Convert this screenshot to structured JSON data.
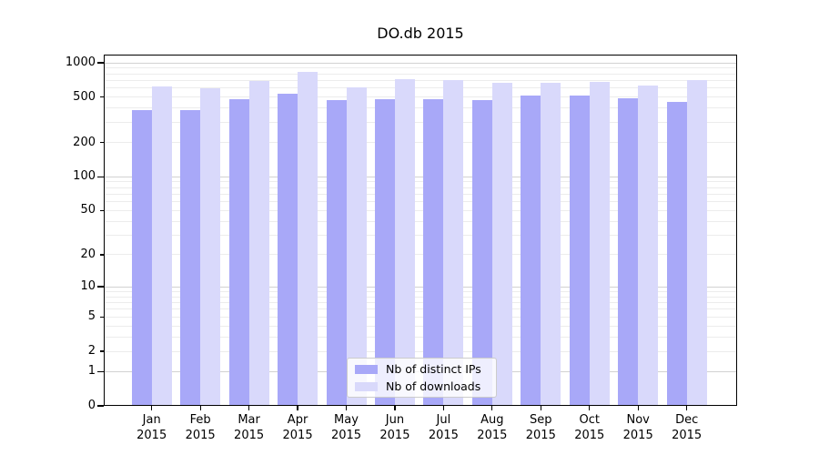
{
  "figure": {
    "title": "DO.db 2015"
  },
  "chart_data": {
    "type": "bar",
    "title": "DO.db 2015",
    "categories": [
      "Jan 2015",
      "Feb 2015",
      "Mar 2015",
      "Apr 2015",
      "May 2015",
      "Jun 2015",
      "Jul 2015",
      "Aug 2015",
      "Sep 2015",
      "Oct 2015",
      "Nov 2015",
      "Dec 2015"
    ],
    "series": [
      {
        "name": "Nb of distinct IPs",
        "color": "#a8a8f8",
        "values": [
          385,
          388,
          483,
          533,
          469,
          480,
          480,
          475,
          514,
          520,
          492,
          455
        ]
      },
      {
        "name": "Nb of downloads",
        "color": "#d9d9fb",
        "values": [
          620,
          598,
          690,
          840,
          613,
          725,
          705,
          668,
          672,
          685,
          636,
          703
        ]
      }
    ],
    "xlabel": "",
    "ylabel": "",
    "yscale": "log10(value+1)",
    "yticks": [
      0,
      1,
      2,
      5,
      10,
      20,
      50,
      100,
      200,
      500,
      1000
    ],
    "major_yticks": [
      0,
      1,
      10,
      100,
      1000
    ],
    "ylim": [
      0,
      1160
    ],
    "grid": true,
    "legend": {
      "location": "lower center",
      "labels": [
        "Nb of distinct IPs",
        "Nb of downloads"
      ]
    },
    "colors": {
      "major_gridline": "#d2d2d2",
      "minor_gridline": "#ececec",
      "axis": "#000000"
    }
  }
}
